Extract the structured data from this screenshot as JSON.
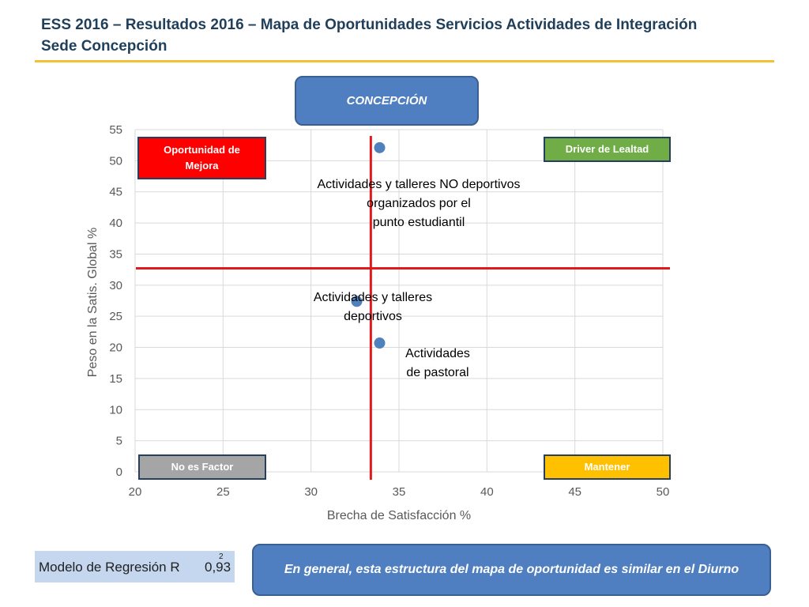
{
  "title": {
    "line1": "ESS 2016 – Resultados 2016 – Mapa de Oportunidades Servicios Actividades de Integración",
    "line2": "Sede Concepción"
  },
  "campus_label": "CONCEPCIÓN",
  "quadrants": {
    "top_left": "Oportunidad de Mejora",
    "top_right": "Driver de Lealtad",
    "bottom_left": "No es Factor",
    "bottom_right": "Mantener"
  },
  "colors": {
    "opportunity": "#ff0000",
    "loyalty": "#70ad47",
    "no_factor": "#a5a5a5",
    "maintain": "#ffc000",
    "points": "#4f81bd",
    "reference_lines": "#e31a1c"
  },
  "chart_data": {
    "type": "scatter",
    "xlabel": "Brecha de Satisfacción %",
    "ylabel": "Peso en la Satis. Global %",
    "xlim": [
      20,
      50
    ],
    "ylim": [
      0,
      55
    ],
    "xticks": [
      20,
      25,
      30,
      35,
      40,
      45,
      50
    ],
    "yticks": [
      0,
      5,
      10,
      15,
      20,
      25,
      30,
      35,
      40,
      45,
      50,
      55
    ],
    "grid": true,
    "reference_lines": {
      "x": 33.4,
      "y": 32.7
    },
    "points": [
      {
        "label": "Actividades y talleres NO deportivos organizados por el punto estudiantil",
        "x": 33.9,
        "y": 52.1
      },
      {
        "label": "Actividades y talleres deportivos",
        "x": 32.6,
        "y": 27.4
      },
      {
        "label": "Actividades de pastoral",
        "x": 33.9,
        "y": 20.7
      }
    ]
  },
  "regression": {
    "label": "Modelo de Regresión R",
    "superscript": "2",
    "value": "0,93"
  },
  "note": "En general, esta estructura del mapa de oportunidad es similar en el Diurno"
}
